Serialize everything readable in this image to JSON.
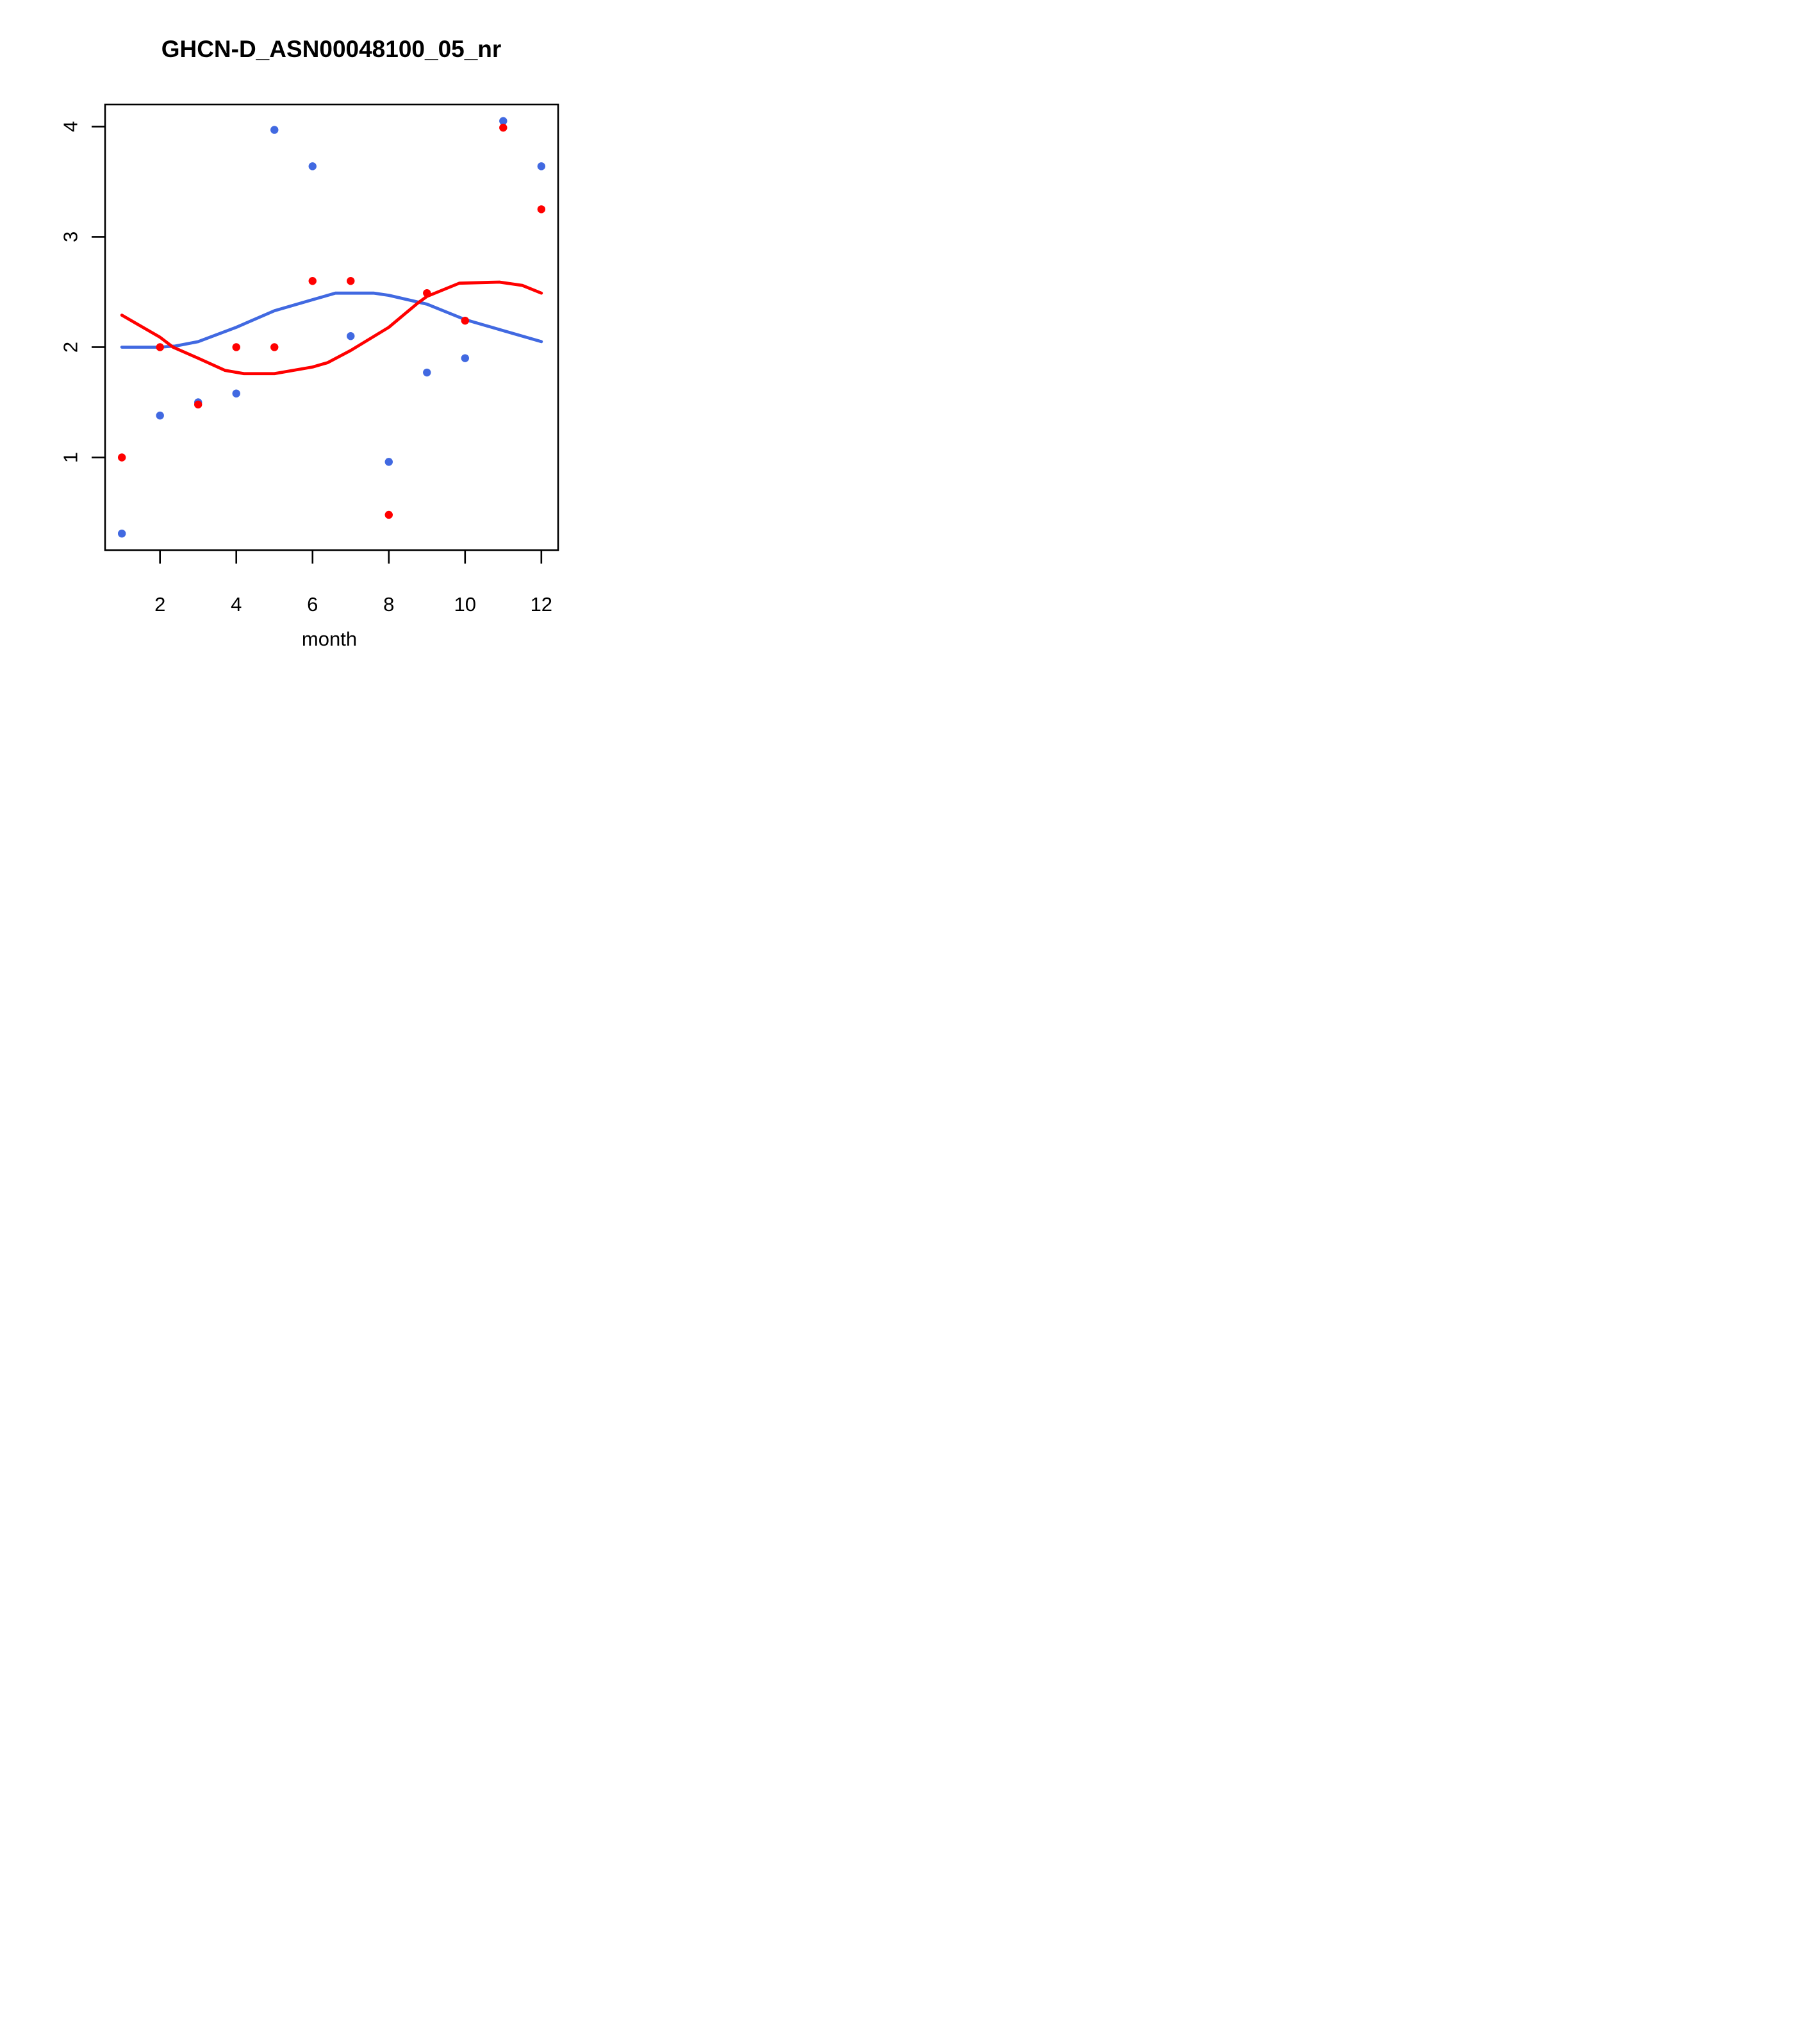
{
  "figure": {
    "title": "GHCN-D_ASN00048100_05_nr"
  },
  "chart_data": {
    "type": "scatter",
    "title": "GHCN-D_ASN00048100_05_nr",
    "xlabel": "month",
    "ylabel": "",
    "xlim": [
      0.56,
      12.44
    ],
    "ylim": [
      0.16,
      4.2
    ],
    "x_ticks": [
      "2",
      "4",
      "6",
      "8",
      "10",
      "12"
    ],
    "x_tick_values": [
      2,
      4,
      6,
      8,
      10,
      12
    ],
    "y_ticks": [
      "1",
      "2",
      "3",
      "4"
    ],
    "y_tick_values": [
      1,
      2,
      3,
      4
    ],
    "grid": false,
    "legend": "none",
    "background_color": "#FFFFFF",
    "axis_color": "#000000",
    "series": [
      {
        "name": "blue-monthly-points",
        "role": "points",
        "color": "#4169E1",
        "x": [
          1,
          2,
          3,
          4,
          5,
          6,
          7,
          8,
          9,
          10,
          11,
          12
        ],
        "y": [
          0.31,
          1.38,
          1.5,
          1.58,
          3.97,
          3.64,
          2.1,
          0.96,
          1.77,
          1.9,
          4.05,
          3.64
        ]
      },
      {
        "name": "red-monthly-points",
        "role": "points",
        "color": "#FF0000",
        "x": [
          1,
          2,
          3,
          4,
          5,
          6,
          7,
          8,
          9,
          10,
          11,
          12
        ],
        "y": [
          1.0,
          2.0,
          1.48,
          2.0,
          2.0,
          2.6,
          2.6,
          0.48,
          2.49,
          2.24,
          3.99,
          3.25
        ]
      },
      {
        "name": "blue-loess-curve",
        "role": "line",
        "color": "#4169E1",
        "x": [
          1,
          2,
          2.4,
          3,
          4,
          5,
          6,
          6.6,
          7.6,
          8,
          9,
          10,
          11,
          12
        ],
        "y": [
          2.0,
          2.0,
          2.01,
          2.05,
          2.18,
          2.33,
          2.43,
          2.49,
          2.49,
          2.47,
          2.39,
          2.25,
          2.15,
          2.05
        ]
      },
      {
        "name": "red-loess-curve",
        "role": "line",
        "color": "#FF0000",
        "x": [
          1,
          2,
          2.34,
          3,
          3.7,
          4.2,
          5,
          6,
          6.4,
          7,
          8,
          8.76,
          9,
          9.85,
          10.9,
          11.5,
          12
        ],
        "y": [
          2.29,
          2.09,
          2.0,
          1.9,
          1.79,
          1.76,
          1.76,
          1.82,
          1.86,
          1.97,
          2.18,
          2.4,
          2.46,
          2.58,
          2.59,
          2.56,
          2.49
        ]
      }
    ]
  }
}
